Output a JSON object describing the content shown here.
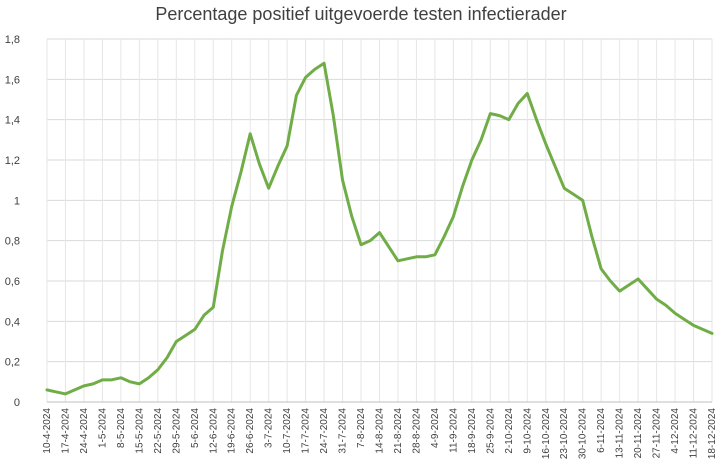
{
  "chart_data": {
    "type": "line",
    "title": "Percentage positief uitgevoerde testen infectierader",
    "xlabel": "",
    "ylabel": "",
    "ylim": [
      0,
      1.8
    ],
    "yticks": [
      "0",
      "0,2",
      "0,4",
      "0,6",
      "0,8",
      "1",
      "1,2",
      "1,4",
      "1,6",
      "1,8"
    ],
    "grid": true,
    "legend": "none",
    "line_color": "#70AD47",
    "x_tick_labels": [
      "10-4-2024",
      "17-4-2024",
      "24-4-2024",
      "1-5-2024",
      "8-5-2024",
      "15-5-2024",
      "22-5-2024",
      "29-5-2024",
      "5-6-2024",
      "12-6-2024",
      "19-6-2024",
      "26-6-2024",
      "3-7-2024",
      "10-7-2024",
      "17-7-2024",
      "24-7-2024",
      "31-7-2024",
      "7-8-2024",
      "14-8-2024",
      "21-8-2024",
      "28-8-2024",
      "4-9-2024",
      "11-9-2024",
      "18-9-2024",
      "25-9-2024",
      "2-10-2024",
      "9-10-2024",
      "16-10-2024",
      "23-10-2024",
      "30-10-2024",
      "6-11-2024",
      "13-11-2024",
      "20-11-2024",
      "27-11-2024",
      "4-12-2024",
      "11-12-2024",
      "18-12-2024"
    ],
    "series": [
      {
        "values": [
          0.06,
          0.05,
          0.04,
          0.06,
          0.08,
          0.09,
          0.11,
          0.11,
          0.12,
          0.1,
          0.09,
          0.12,
          0.16,
          0.22,
          0.3,
          0.33,
          0.36,
          0.43,
          0.47,
          0.75,
          0.97,
          1.14,
          1.33,
          1.18,
          1.06,
          1.17,
          1.27,
          1.52,
          1.61,
          1.65,
          1.68,
          1.42,
          1.1,
          0.92,
          0.78,
          0.8,
          0.84,
          0.77,
          0.7,
          0.71,
          0.72,
          0.72,
          0.73,
          0.82,
          0.92,
          1.07,
          1.2,
          1.3,
          1.43,
          1.42,
          1.4,
          1.48,
          1.53,
          1.4,
          1.28,
          1.17,
          1.06,
          1.03,
          1.0,
          0.82,
          0.66,
          0.6,
          0.55,
          0.58,
          0.61,
          0.56,
          0.51,
          0.48,
          0.44,
          0.41,
          0.38,
          0.36,
          0.34
        ]
      }
    ]
  }
}
